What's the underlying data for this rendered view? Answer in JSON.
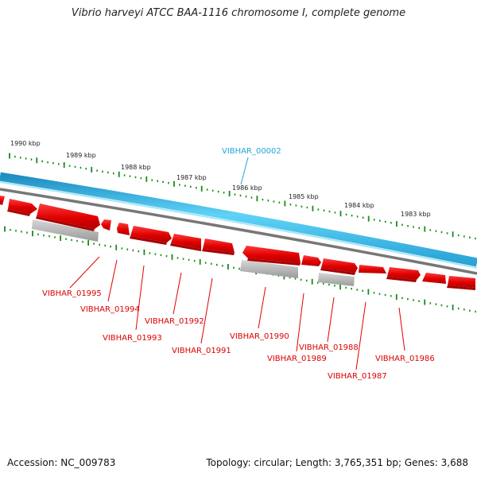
{
  "title": "Vibrio harveyi ATCC BAA-1116 chromosome I, complete genome",
  "footer": {
    "accession": "Accession: NC_009783",
    "summary": "Topology: circular; Length: 3,765,351 bp; Genes: 3,688"
  },
  "colors": {
    "gene_forward": "#ee0000",
    "gene_reverse": "#ee0000",
    "pseudo_gray": "#b8b8b8",
    "backbone_cyan": "#3cbde6",
    "backbone_gray": "#7a7a7a",
    "ticks": "#1a8a1a",
    "label_red": "#dd0000",
    "label_cyan": "#1ea9d6"
  },
  "scale": {
    "unit": "kbp",
    "ticks": [
      "1990 kbp",
      "1989 kbp",
      "1988 kbp",
      "1987 kbp",
      "1986 kbp",
      "1985 kbp",
      "1984 kbp",
      "1983 kbp"
    ]
  },
  "features": {
    "top_label": "VIBHAR_00002",
    "gene_labels": [
      "VIBHAR_01995",
      "VIBHAR_01994",
      "VIBHAR_01993",
      "VIBHAR_01992",
      "VIBHAR_01991",
      "VIBHAR_01990",
      "VIBHAR_01989",
      "VIBHAR_01988",
      "VIBHAR_01987",
      "VIBHAR_01986"
    ]
  }
}
